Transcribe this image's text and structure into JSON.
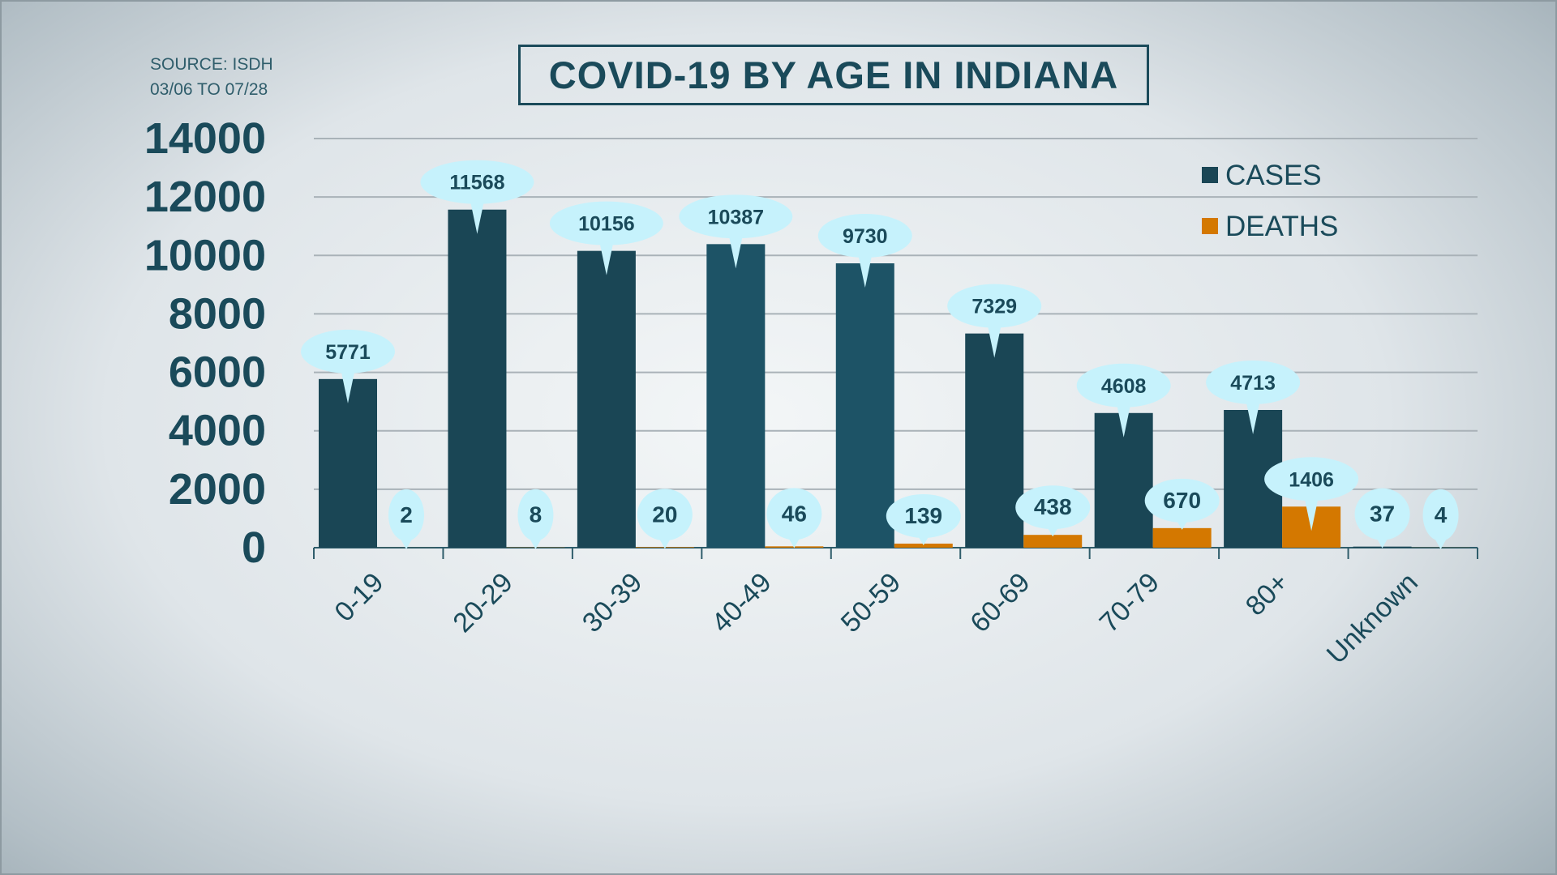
{
  "source_line1": "SOURCE: ISDH",
  "source_line2": "03/06 TO 07/28",
  "colors": {
    "cases": "#1a4655",
    "deaths": "#d47800",
    "bubble": "#c6f2fc",
    "text": "#1a4a5a",
    "grid": "#a9b2b8"
  },
  "chart_data": {
    "type": "bar",
    "title": "COVID-19 BY AGE IN INDIANA",
    "categories": [
      "0-19",
      "20-29",
      "30-39",
      "40-49",
      "50-59",
      "60-69",
      "70-79",
      "80+",
      "Unknown"
    ],
    "series": [
      {
        "name": "CASES",
        "values": [
          5771,
          11568,
          10156,
          10387,
          9730,
          7329,
          4608,
          4713,
          37
        ]
      },
      {
        "name": "DEATHS",
        "values": [
          2,
          8,
          20,
          46,
          139,
          438,
          670,
          1406,
          4
        ]
      }
    ],
    "yticks": [
      0,
      2000,
      4000,
      6000,
      8000,
      10000,
      12000,
      14000
    ],
    "ylim": [
      0,
      14000
    ],
    "grid": true,
    "legend": "top-right",
    "data_labels": true
  }
}
